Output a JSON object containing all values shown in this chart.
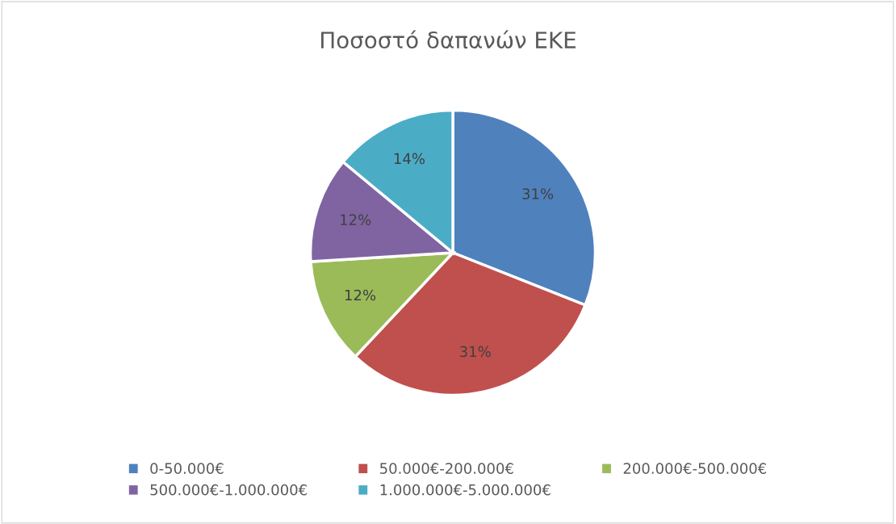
{
  "chart_data": {
    "type": "pie",
    "title": "Ποσοστό δαπανών ΕΚΕ",
    "categories": [
      "0-50.000€",
      "50.000€-200.000€",
      "200.000€-500.000€",
      "500.000€-1.000.000€",
      "1.000.000€-5.000.000€"
    ],
    "values": [
      31,
      31,
      12,
      12,
      14
    ],
    "colors": [
      "#4f81bd",
      "#c0504d",
      "#9bbb59",
      "#8064a2",
      "#4bacc6"
    ],
    "value_labels": [
      "31%",
      "31%",
      "12%",
      "12%",
      "14%"
    ],
    "legend": "bottom"
  }
}
